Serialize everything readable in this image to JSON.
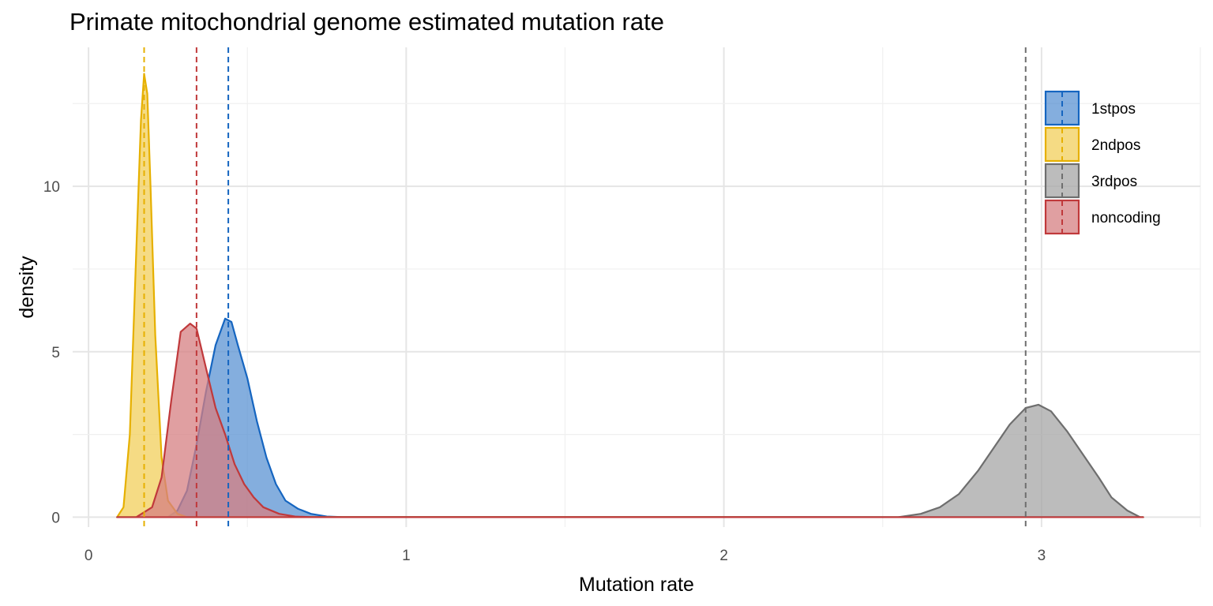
{
  "chart_data": {
    "type": "area",
    "title": "Primate mitochondrial genome estimated mutation rate",
    "xlabel": "Mutation rate",
    "ylabel": "density",
    "xlim": [
      -0.05,
      3.5
    ],
    "ylim": [
      -0.3,
      14.2
    ],
    "x_ticks": [
      0,
      1,
      2,
      3
    ],
    "y_ticks": [
      0,
      5,
      10
    ],
    "x_tick_labels": [
      "0",
      "1",
      "2",
      "3"
    ],
    "y_tick_labels": [
      "0",
      "5",
      "10"
    ],
    "grid": true,
    "legend_position": "top-right",
    "series": [
      {
        "name": "1stpos",
        "color": "#1565c0",
        "fill": "#5b93d3",
        "mean": 0.44,
        "points": [
          [
            0.25,
            0
          ],
          [
            0.28,
            0.2
          ],
          [
            0.31,
            0.8
          ],
          [
            0.34,
            2.2
          ],
          [
            0.37,
            3.8
          ],
          [
            0.4,
            5.2
          ],
          [
            0.43,
            6.0
          ],
          [
            0.45,
            5.9
          ],
          [
            0.47,
            5.2
          ],
          [
            0.5,
            4.2
          ],
          [
            0.53,
            2.9
          ],
          [
            0.56,
            1.8
          ],
          [
            0.59,
            1.0
          ],
          [
            0.62,
            0.5
          ],
          [
            0.66,
            0.25
          ],
          [
            0.7,
            0.1
          ],
          [
            0.75,
            0.02
          ],
          [
            0.8,
            0
          ]
        ]
      },
      {
        "name": "2ndpos",
        "color": "#e6b000",
        "fill": "#f2cf5b",
        "mean": 0.175,
        "points": [
          [
            0.09,
            0
          ],
          [
            0.11,
            0.3
          ],
          [
            0.13,
            2.5
          ],
          [
            0.15,
            8.0
          ],
          [
            0.165,
            12.0
          ],
          [
            0.175,
            13.4
          ],
          [
            0.185,
            12.8
          ],
          [
            0.195,
            10.0
          ],
          [
            0.21,
            5.5
          ],
          [
            0.23,
            1.8
          ],
          [
            0.25,
            0.5
          ],
          [
            0.28,
            0.1
          ],
          [
            0.31,
            0
          ]
        ]
      },
      {
        "name": "3rdpos",
        "color": "#6e6e6e",
        "fill": "#a6a6a6",
        "mean": 2.95,
        "points": [
          [
            2.55,
            0
          ],
          [
            2.62,
            0.1
          ],
          [
            2.68,
            0.3
          ],
          [
            2.74,
            0.7
          ],
          [
            2.8,
            1.4
          ],
          [
            2.85,
            2.1
          ],
          [
            2.9,
            2.8
          ],
          [
            2.95,
            3.3
          ],
          [
            2.99,
            3.4
          ],
          [
            3.03,
            3.2
          ],
          [
            3.08,
            2.6
          ],
          [
            3.13,
            1.9
          ],
          [
            3.18,
            1.2
          ],
          [
            3.22,
            0.6
          ],
          [
            3.27,
            0.2
          ],
          [
            3.31,
            0
          ]
        ]
      },
      {
        "name": "noncoding",
        "color": "#c0393b",
        "fill": "#d67f81",
        "mean": 0.34,
        "points": [
          [
            0.15,
            0
          ],
          [
            0.2,
            0.3
          ],
          [
            0.23,
            1.2
          ],
          [
            0.26,
            3.5
          ],
          [
            0.29,
            5.6
          ],
          [
            0.32,
            5.85
          ],
          [
            0.34,
            5.7
          ],
          [
            0.37,
            4.5
          ],
          [
            0.4,
            3.3
          ],
          [
            0.43,
            2.5
          ],
          [
            0.46,
            1.6
          ],
          [
            0.49,
            1.0
          ],
          [
            0.52,
            0.6
          ],
          [
            0.55,
            0.3
          ],
          [
            0.6,
            0.1
          ],
          [
            0.65,
            0.02
          ],
          [
            0.7,
            0
          ]
        ]
      }
    ]
  }
}
